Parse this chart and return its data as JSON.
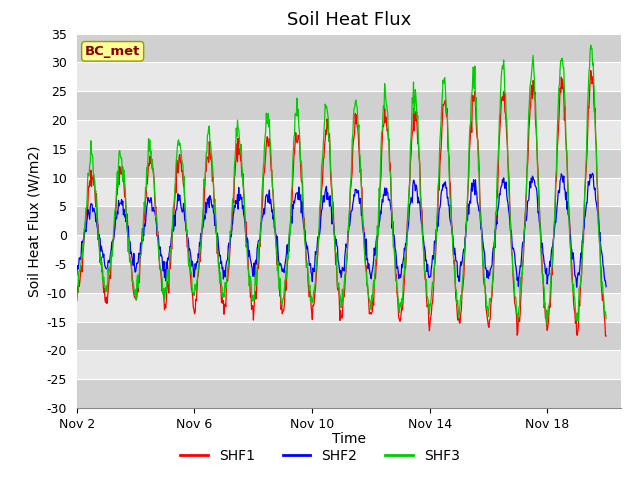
{
  "title": "Soil Heat Flux",
  "ylabel": "Soil Heat Flux (W/m2)",
  "xlabel": "Time",
  "annotation": "BC_met",
  "ylim": [
    -30,
    35
  ],
  "x_ticks": [
    0,
    4,
    8,
    12,
    16
  ],
  "x_tick_labels": [
    "Nov 2",
    "Nov 6",
    "Nov 10",
    "Nov 14",
    "Nov 18"
  ],
  "colors": {
    "SHF1": "#ff0000",
    "SHF2": "#0000ff",
    "SHF3": "#00cc00"
  },
  "bg_color": "#ffffff",
  "title_fontsize": 13,
  "label_fontsize": 10,
  "tick_fontsize": 9,
  "legend_fontsize": 10,
  "band_light": "#e8e8e8",
  "band_dark": "#d0d0d0"
}
